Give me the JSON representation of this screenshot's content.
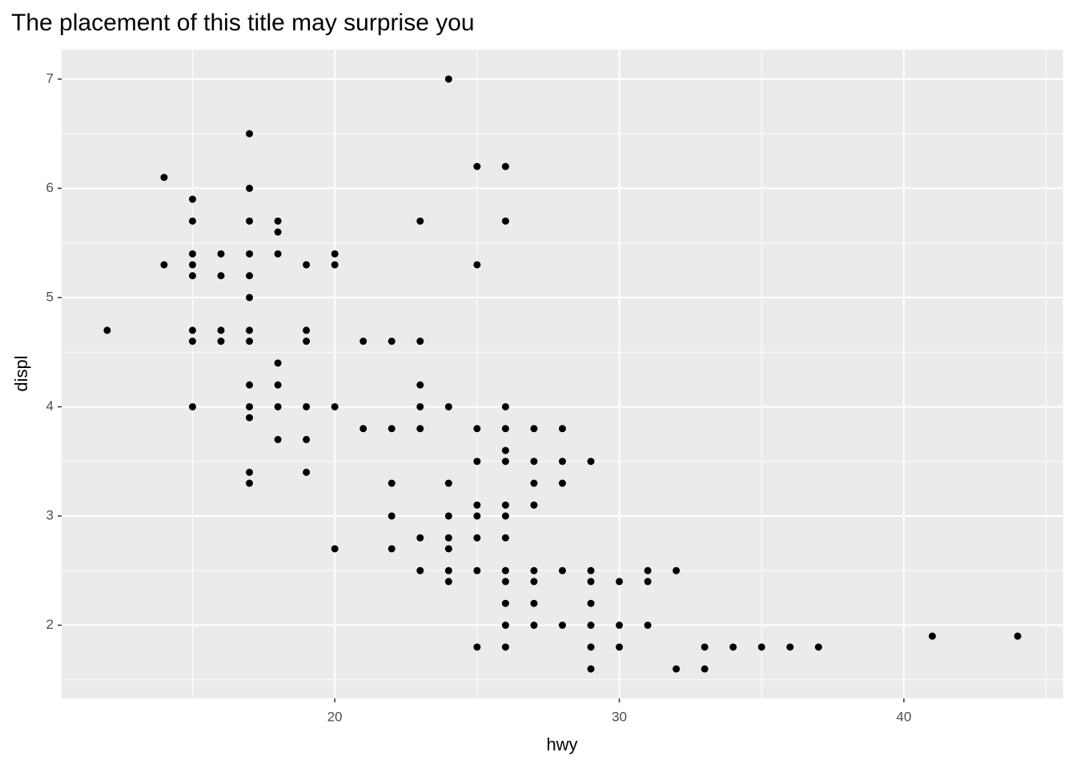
{
  "chart_data": {
    "type": "scatter",
    "title": "The placement of this title may surprise you",
    "x_label": "hwy",
    "y_label": "displ",
    "x": [
      12,
      14,
      14,
      15,
      15,
      15,
      15,
      15,
      15,
      15,
      15,
      16,
      16,
      16,
      16,
      17,
      17,
      17,
      17,
      17,
      17,
      17,
      17,
      17,
      17,
      17,
      17,
      17,
      18,
      18,
      18,
      18,
      18,
      18,
      18,
      19,
      19,
      19,
      19,
      19,
      19,
      20,
      20,
      20,
      20,
      21,
      21,
      22,
      22,
      22,
      22,
      22,
      23,
      23,
      23,
      23,
      23,
      23,
      23,
      24,
      24,
      24,
      24,
      24,
      24,
      24,
      24,
      25,
      25,
      25,
      25,
      25,
      25,
      25,
      25,
      25,
      26,
      26,
      26,
      26,
      26,
      26,
      26,
      26,
      26,
      26,
      26,
      26,
      26,
      26,
      27,
      27,
      27,
      27,
      27,
      27,
      27,
      27,
      28,
      28,
      28,
      28,
      28,
      29,
      29,
      29,
      29,
      29,
      29,
      29,
      30,
      30,
      30,
      31,
      31,
      31,
      32,
      32,
      33,
      33,
      34,
      35,
      36,
      37,
      41,
      44
    ],
    "y": [
      4.7,
      6.1,
      5.3,
      5.9,
      5.7,
      5.4,
      5.3,
      5.2,
      4.7,
      4.6,
      4.0,
      5.4,
      5.2,
      4.7,
      4.6,
      6.5,
      6.0,
      5.7,
      5.4,
      5.2,
      5.0,
      4.7,
      4.6,
      4.2,
      4.0,
      3.9,
      3.4,
      3.3,
      5.7,
      5.6,
      5.4,
      4.4,
      4.2,
      4.0,
      3.7,
      5.3,
      4.7,
      4.6,
      4.0,
      3.7,
      3.4,
      5.4,
      5.3,
      4.0,
      2.7,
      4.6,
      3.8,
      4.6,
      3.8,
      3.3,
      3.0,
      2.7,
      5.7,
      4.6,
      4.2,
      4.0,
      3.8,
      2.8,
      2.5,
      7.0,
      4.0,
      3.3,
      3.0,
      2.8,
      2.7,
      2.5,
      2.4,
      6.2,
      5.3,
      3.8,
      3.5,
      3.1,
      3.0,
      2.8,
      2.5,
      1.8,
      6.2,
      5.7,
      4.0,
      3.8,
      3.6,
      3.5,
      3.1,
      3.0,
      2.8,
      2.5,
      2.4,
      2.2,
      2.0,
      1.8,
      3.8,
      3.5,
      3.3,
      3.1,
      2.5,
      2.4,
      2.2,
      2.0,
      3.8,
      3.5,
      3.3,
      2.5,
      2.0,
      3.5,
      2.5,
      2.4,
      2.2,
      2.0,
      1.8,
      1.6,
      2.4,
      2.0,
      1.8,
      2.5,
      2.4,
      2.0,
      2.5,
      1.6,
      1.8,
      1.6,
      1.8,
      1.8,
      1.8,
      1.8,
      1.9,
      1.9
    ],
    "color": "#000000",
    "xlim": [
      10.4,
      45.6
    ],
    "xticks": [
      20,
      30,
      40
    ],
    "ylim": [
      1.33,
      7.27
    ],
    "yticks": [
      2,
      3,
      4,
      5,
      6,
      7
    ],
    "grid": true
  }
}
